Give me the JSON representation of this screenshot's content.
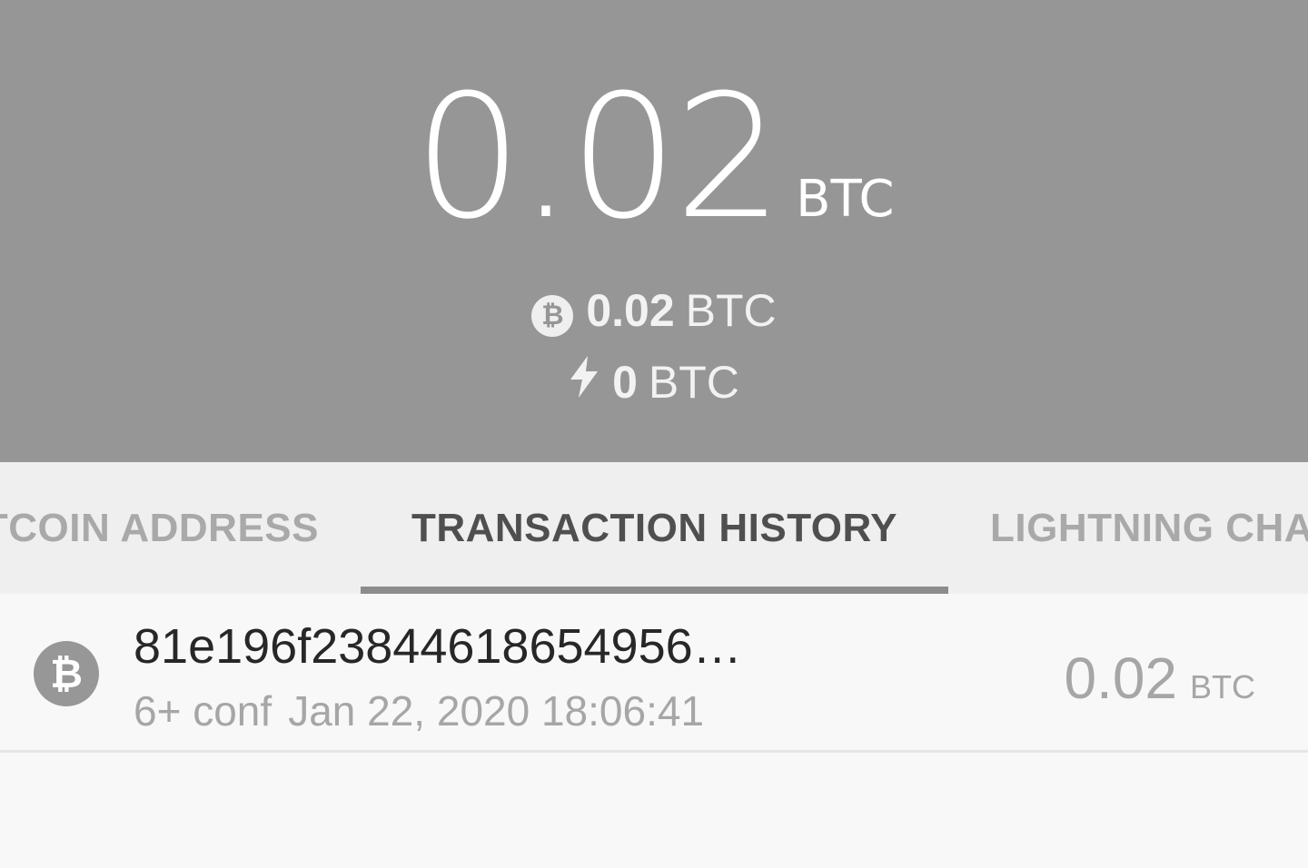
{
  "balance": {
    "total_amount": "0.02",
    "total_unit": "BTC",
    "onchain": {
      "icon": "bitcoin-icon",
      "amount": "0.02",
      "unit": "BTC"
    },
    "lightning": {
      "icon": "lightning-bolt-icon",
      "amount": "0",
      "unit": "BTC"
    }
  },
  "tabs": [
    {
      "label": "BITCOIN ADDRESS",
      "visible_text": "TCOIN ADDRESS"
    },
    {
      "label": "TRANSACTION HISTORY",
      "active": true
    },
    {
      "label": "LIGHTNING CHANNELS",
      "visible_text": "LIGHTNING CHA"
    }
  ],
  "transactions": [
    {
      "icon": "bitcoin-icon",
      "txid": "81e196f23844618654956…",
      "confirmations": "6+ conf",
      "timestamp": "Jan 22, 2020 18:06:41",
      "amount": "0.02",
      "unit": "BTC"
    }
  ],
  "colors": {
    "header_bg": "#969696",
    "tabs_bg": "#efefef",
    "list_bg": "#f8f8f8",
    "active_tab_text": "#4f4f4f",
    "inactive_tab_text": "#a9a9a9"
  }
}
